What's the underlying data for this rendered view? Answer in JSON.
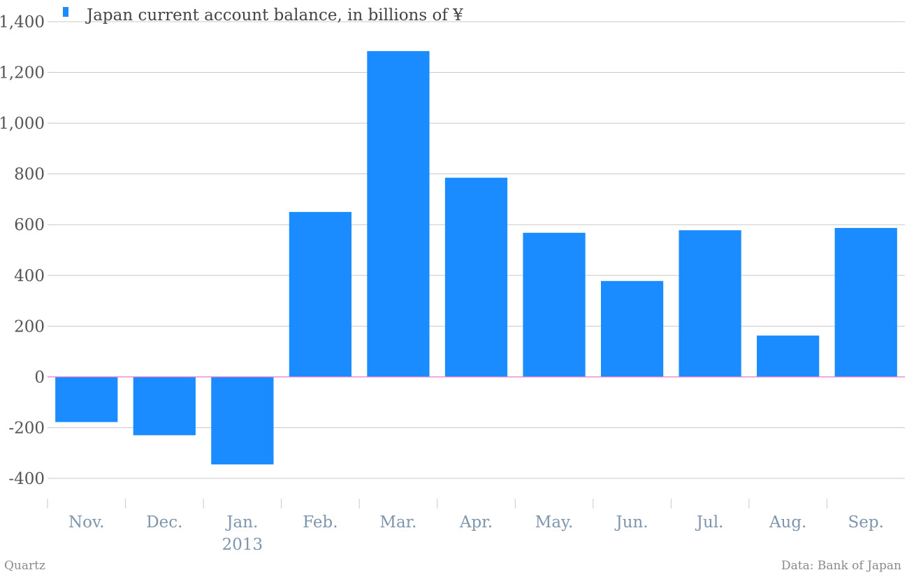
{
  "chart_data": {
    "type": "bar",
    "categories": [
      "Nov.",
      "Dec.",
      "Jan.",
      "Feb.",
      "Mar.",
      "Apr.",
      "May.",
      "Jun.",
      "Jul.",
      "Aug.",
      "Sep."
    ],
    "category_sublabels": [
      "",
      "",
      "2013",
      "",
      "",
      "",
      "",
      "",
      "",
      "",
      ""
    ],
    "series": [
      {
        "name": "Japan current account balance, in billions of ¥",
        "color": "#1a8cff",
        "values": [
          -178,
          -230,
          -345,
          650,
          1284,
          785,
          568,
          378,
          578,
          163,
          587
        ]
      }
    ],
    "ylim": [
      -400,
      1400
    ],
    "yticks": [
      1400,
      1200,
      1000,
      800,
      600,
      400,
      200,
      0,
      -200,
      -400
    ],
    "ytick_labels": [
      "1,400",
      "1,200",
      "1,000",
      "800",
      "600",
      "400",
      "200",
      "0",
      "-200",
      "-400"
    ],
    "grid": true,
    "legend_position": "top-left",
    "zero_line_color": "#e87ad1"
  },
  "credits": {
    "source_left": "Quartz",
    "source_right": "Data: Bank of Japan"
  }
}
